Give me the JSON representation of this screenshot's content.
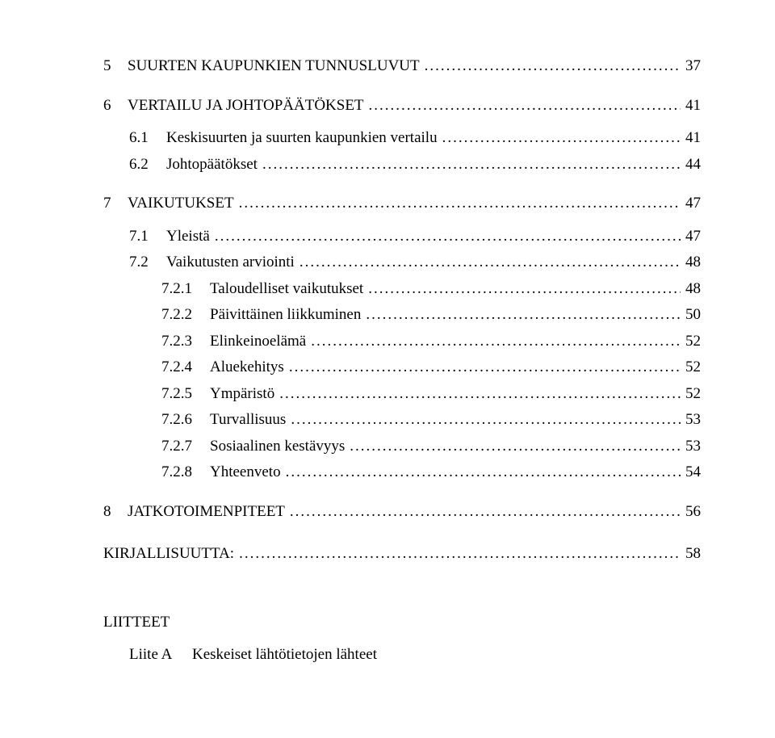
{
  "colors": {
    "text": "#000000",
    "background": "#ffffff"
  },
  "typography": {
    "family": "Times New Roman",
    "base_size_pt": 14
  },
  "toc": {
    "s5": {
      "num": "5",
      "label": "SUURTEN KAUPUNKIEN TUNNUSLUVUT",
      "page": "37"
    },
    "s6": {
      "num": "6",
      "label": "VERTAILU JA JOHTOPÄÄTÖKSET",
      "page": "41"
    },
    "s6_1": {
      "num": "6.1",
      "label": "Keskisuurten ja suurten kaupunkien vertailu",
      "page": "41"
    },
    "s6_2": {
      "num": "6.2",
      "label": "Johtopäätökset",
      "page": "44"
    },
    "s7": {
      "num": "7",
      "label": "VAIKUTUKSET",
      "page": "47"
    },
    "s7_1": {
      "num": "7.1",
      "label": "Yleistä",
      "page": "47"
    },
    "s7_2": {
      "num": "7.2",
      "label": "Vaikutusten arviointi",
      "page": "48"
    },
    "s7_2_1": {
      "num": "7.2.1",
      "label": "Taloudelliset vaikutukset",
      "page": "48"
    },
    "s7_2_2": {
      "num": "7.2.2",
      "label": "Päivittäinen liikkuminen",
      "page": "50"
    },
    "s7_2_3": {
      "num": "7.2.3",
      "label": "Elinkeinoelämä",
      "page": "52"
    },
    "s7_2_4": {
      "num": "7.2.4",
      "label": "Aluekehitys",
      "page": "52"
    },
    "s7_2_5": {
      "num": "7.2.5",
      "label": "Ympäristö",
      "page": "52"
    },
    "s7_2_6": {
      "num": "7.2.6",
      "label": "Turvallisuus",
      "page": "53"
    },
    "s7_2_7": {
      "num": "7.2.7",
      "label": "Sosiaalinen kestävyys",
      "page": "53"
    },
    "s7_2_8": {
      "num": "7.2.8",
      "label": "Yhteenveto",
      "page": "54"
    },
    "s8": {
      "num": "8",
      "label": "JATKOTOIMENPITEET",
      "page": "56"
    },
    "lit": {
      "label": "KIRJALLISUUTTA:",
      "page": "58"
    }
  },
  "appendix": {
    "heading": "LIITTEET",
    "a": {
      "num": "Liite A",
      "label": "Keskeiset lähtötietojen lähteet"
    }
  }
}
